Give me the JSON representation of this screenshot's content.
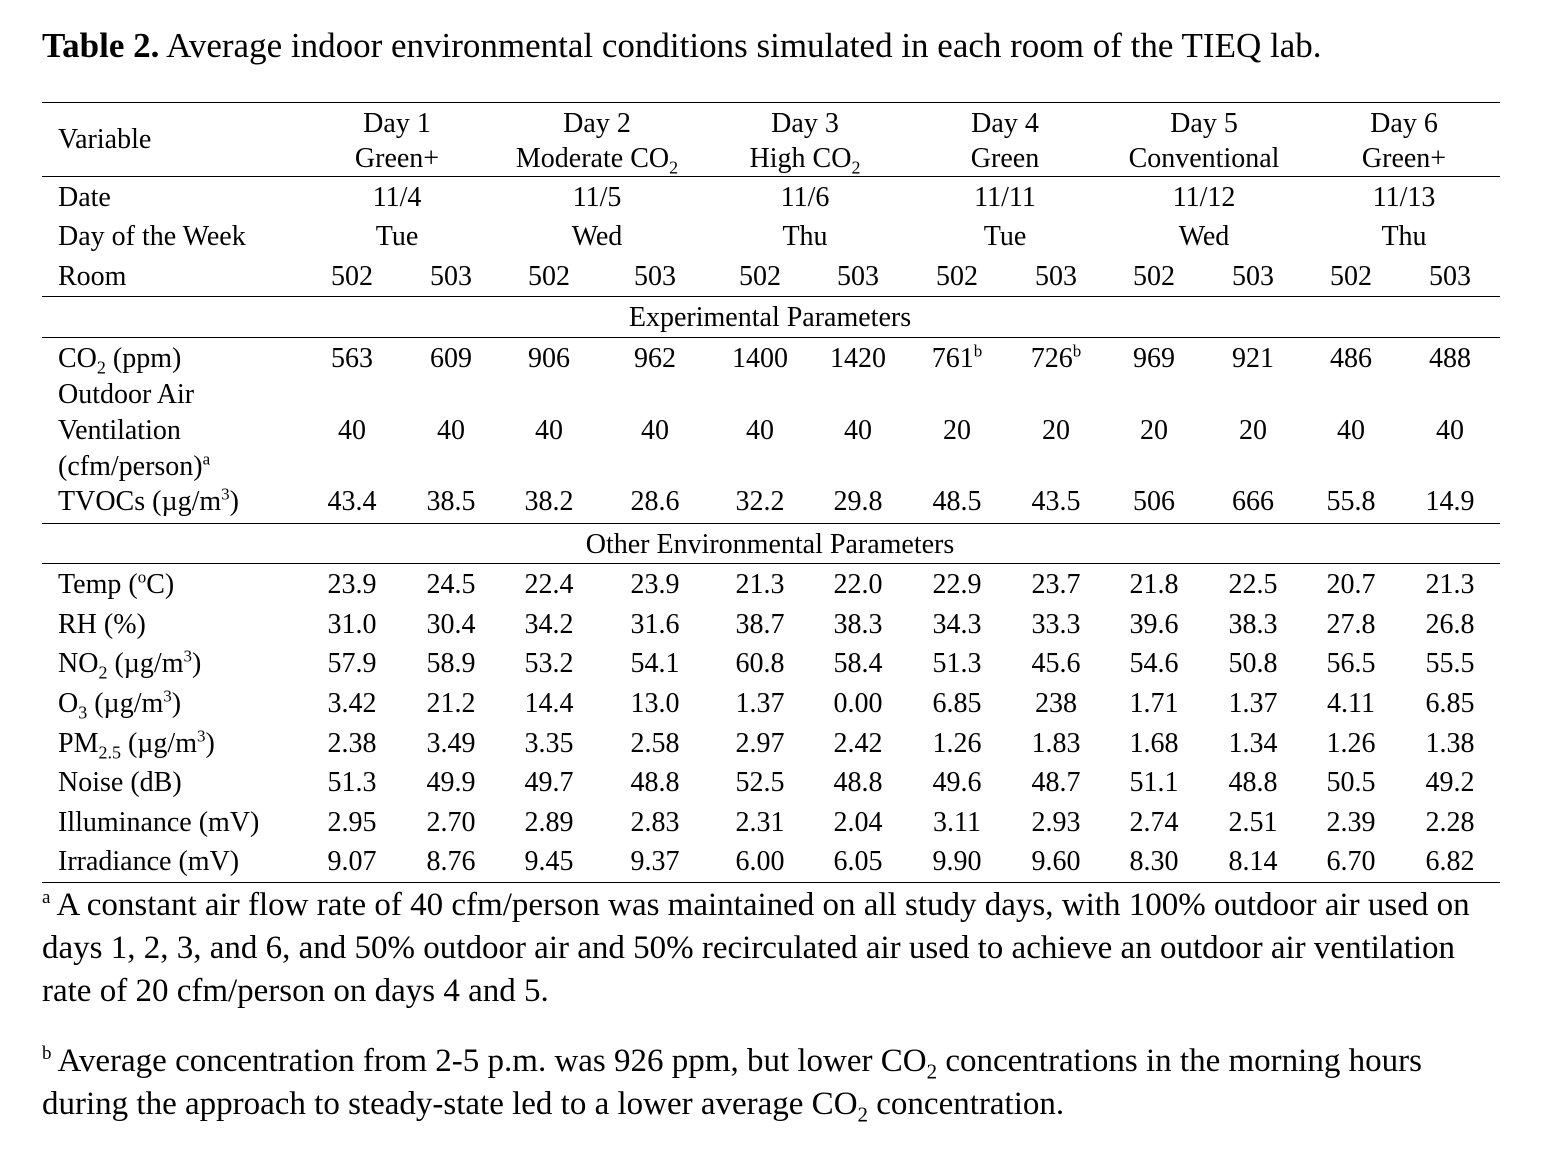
{
  "caption": {
    "label": "Table 2.",
    "text": " Average indoor environmental conditions simulated in each room of the TIEQ lab."
  },
  "header": {
    "variable_label": "Variable",
    "days": [
      {
        "day": "Day 1",
        "cond": "Green+"
      },
      {
        "day": "Day 2",
        "cond": "Moderate CO",
        "cond_sub": "2"
      },
      {
        "day": "Day 3",
        "cond": "High CO",
        "cond_sub": "2"
      },
      {
        "day": "Day 4",
        "cond": "Green"
      },
      {
        "day": "Day 5",
        "cond": "Conventional"
      },
      {
        "day": "Day 6",
        "cond": "Green+"
      }
    ],
    "date_label": "Date",
    "dates": [
      "11/4",
      "11/5",
      "11/6",
      "11/11",
      "11/12",
      "11/13"
    ],
    "dow_label": "Day of the Week",
    "dows": [
      "Tue",
      "Wed",
      "Thu",
      "Tue",
      "Wed",
      "Thu"
    ],
    "room_label": "Room",
    "rooms": [
      "502",
      "503"
    ]
  },
  "sections": {
    "experimental": "Experimental Parameters",
    "other": "Other Environmental Parameters"
  },
  "experimental_rows": {
    "co2": {
      "label": "CO",
      "label_sub": "2",
      "label_tail": " (ppm)",
      "values": [
        "563",
        "609",
        "906",
        "962",
        "1400",
        "1420",
        "761",
        "726",
        "969",
        "921",
        "486",
        "488"
      ],
      "value_sups": [
        "",
        "",
        "",
        "",
        "",
        "",
        "b",
        "b",
        "",
        "",
        "",
        ""
      ]
    },
    "oav": {
      "label_line1": "Outdoor Air",
      "label_line2": "Ventilation",
      "label_line3": "(cfm/person)",
      "label_sup": "a",
      "values": [
        "40",
        "40",
        "40",
        "40",
        "40",
        "40",
        "20",
        "20",
        "20",
        "20",
        "40",
        "40"
      ]
    },
    "tvoc": {
      "label": "TVOCs (µg/m",
      "label_sup": "3",
      "label_tail": ")",
      "values": [
        "43.4",
        "38.5",
        "38.2",
        "28.6",
        "32.2",
        "29.8",
        "48.5",
        "43.5",
        "506",
        "666",
        "55.8",
        "14.9"
      ]
    }
  },
  "other_rows": [
    {
      "label": "Temp (",
      "label_sup": "o",
      "label_tail": "C)",
      "values": [
        "23.9",
        "24.5",
        "22.4",
        "23.9",
        "21.3",
        "22.0",
        "22.9",
        "23.7",
        "21.8",
        "22.5",
        "20.7",
        "21.3"
      ]
    },
    {
      "label": "RH (%)",
      "values": [
        "31.0",
        "30.4",
        "34.2",
        "31.6",
        "38.7",
        "38.3",
        "34.3",
        "33.3",
        "39.6",
        "38.3",
        "27.8",
        "26.8"
      ]
    },
    {
      "label": "NO",
      "label_sub": "2",
      "label_mid": " (µg/m",
      "label_sup": "3",
      "label_tail": ")",
      "values": [
        "57.9",
        "58.9",
        "53.2",
        "54.1",
        "60.8",
        "58.4",
        "51.3",
        "45.6",
        "54.6",
        "50.8",
        "56.5",
        "55.5"
      ]
    },
    {
      "label": "O",
      "label_sub": "3",
      "label_mid": " (µg/m",
      "label_sup": "3",
      "label_tail": ")",
      "values": [
        "3.42",
        "21.2",
        "14.4",
        "13.0",
        "1.37",
        "0.00",
        "6.85",
        "238",
        "1.71",
        "1.37",
        "4.11",
        "6.85"
      ]
    },
    {
      "label": "PM",
      "label_sub": "2.5",
      "label_mid": " (µg/m",
      "label_sup": "3",
      "label_tail": ")",
      "values": [
        "2.38",
        "3.49",
        "3.35",
        "2.58",
        "2.97",
        "2.42",
        "1.26",
        "1.83",
        "1.68",
        "1.34",
        "1.26",
        "1.38"
      ]
    },
    {
      "label": "Noise (dB)",
      "values": [
        "51.3",
        "49.9",
        "49.7",
        "48.8",
        "52.5",
        "48.8",
        "49.6",
        "48.7",
        "51.1",
        "48.8",
        "50.5",
        "49.2"
      ]
    },
    {
      "label": "Illuminance (mV)",
      "values": [
        "2.95",
        "2.70",
        "2.89",
        "2.83",
        "2.31",
        "2.04",
        "3.11",
        "2.93",
        "2.74",
        "2.51",
        "2.39",
        "2.28"
      ]
    },
    {
      "label": "Irradiance (mV)",
      "values": [
        "9.07",
        "8.76",
        "9.45",
        "9.37",
        "6.00",
        "6.05",
        "9.90",
        "9.60",
        "8.30",
        "8.14",
        "6.70",
        "6.82"
      ]
    }
  ],
  "footnotes": {
    "a_mark": "a",
    "a_text": "A constant air flow rate of 40 cfm/person was maintained on all study days, with 100% outdoor air used on days 1, 2, 3, and 6, and 50% outdoor air and 50% recirculated air used to achieve an outdoor air ventilation rate of 20 cfm/person on days 4 and 5.",
    "b_mark": "b",
    "b_text_1": "Average concentration from 2-5 p.m. was 926 ppm, but lower CO",
    "b_sub_1": "2",
    "b_text_2": " concentrations in the morning hours during the approach to steady-state led to a lower average CO",
    "b_sub_2": "2",
    "b_text_3": " concentration."
  }
}
